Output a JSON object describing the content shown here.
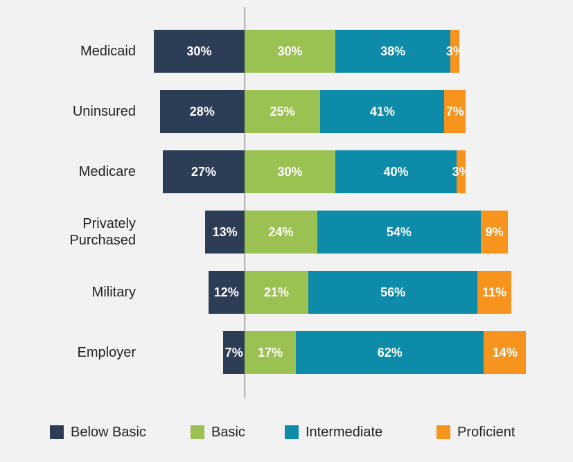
{
  "chart_data": {
    "type": "diverging-bar",
    "categories": [
      "Medicaid",
      "Uninsured",
      "Medicare",
      "Privately Purchased",
      "Military",
      "Employer"
    ],
    "series": [
      {
        "name": "Below Basic",
        "color": "#2e3d56",
        "direction": "left",
        "values": [
          30,
          28,
          27,
          13,
          12,
          7
        ],
        "value_labels": [
          "30%",
          "28%",
          "27%",
          "13%",
          "12%",
          "7%"
        ]
      },
      {
        "name": "Basic",
        "color": "#9cc153",
        "direction": "right",
        "values": [
          30,
          25,
          30,
          24,
          21,
          17
        ],
        "value_labels": [
          "30%",
          "25%",
          "30%",
          "24%",
          "21%",
          "17%"
        ]
      },
      {
        "name": "Intermediate",
        "color": "#0e8ba8",
        "direction": "right",
        "values": [
          38,
          41,
          40,
          54,
          56,
          62
        ],
        "value_labels": [
          "38%",
          "41%",
          "40%",
          "54%",
          "56%",
          "62%"
        ]
      },
      {
        "name": "Proficient",
        "color": "#f7941d",
        "direction": "right",
        "values": [
          3,
          7,
          3,
          9,
          11,
          14
        ],
        "value_labels": [
          "3%",
          "7%",
          "3%",
          "9%",
          "11%",
          "14%"
        ]
      }
    ],
    "legend": "bottom"
  }
}
